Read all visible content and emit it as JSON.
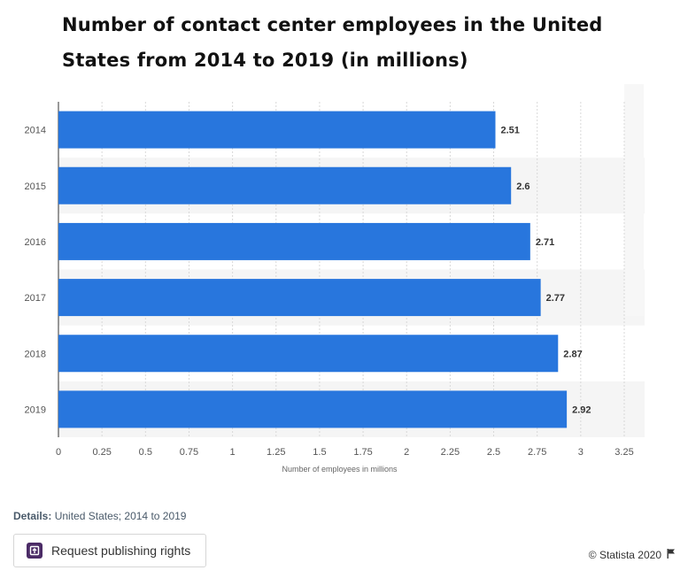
{
  "header": {
    "title": "Number of contact center employees in the United States from 2014 to 2019 (in millions)"
  },
  "chart_data": {
    "type": "bar",
    "orientation": "horizontal",
    "categories": [
      "2014",
      "2015",
      "2016",
      "2017",
      "2018",
      "2019"
    ],
    "values": [
      2.51,
      2.6,
      2.71,
      2.77,
      2.87,
      2.92
    ],
    "value_labels": [
      "2.51",
      "2.6",
      "2.71",
      "2.77",
      "2.87",
      "2.92"
    ],
    "xlabel": "Number of employees in millions",
    "ylabel": "",
    "xlim": [
      0,
      3.25
    ],
    "xticks": [
      "0",
      "0.25",
      "0.5",
      "0.75",
      "1",
      "1.25",
      "1.5",
      "1.75",
      "2",
      "2.25",
      "2.5",
      "2.75",
      "3",
      "3.25"
    ],
    "grid": true,
    "bar_color": "#2876dd"
  },
  "details": {
    "label": "Details:",
    "text": "United States; 2014 to 2019"
  },
  "actions": {
    "request_label": "Request publishing rights"
  },
  "footer": {
    "copyright": "© Statista 2020",
    "flag_icon": "flag-icon"
  }
}
